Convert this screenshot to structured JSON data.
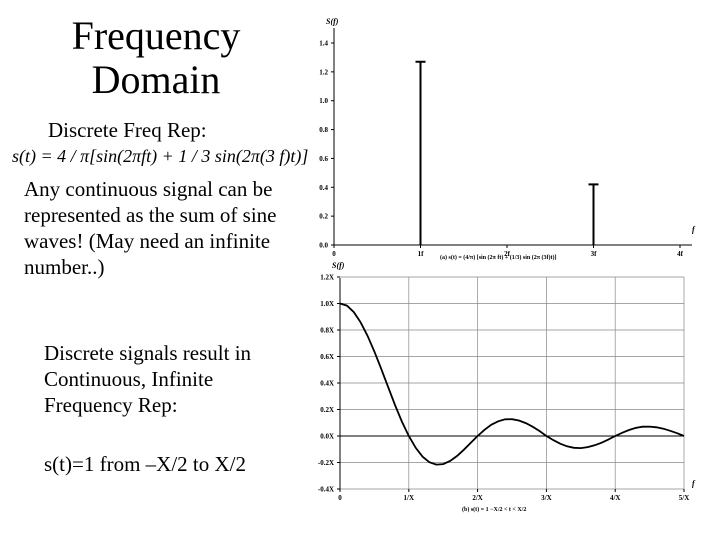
{
  "left_panel": {
    "title": "Frequency Domain",
    "subtitle": "Discrete Freq Rep:",
    "formula": "s(t) = 4 / π[sin(2πft) + 1 / 3 sin(2π(3 f)t)]",
    "paragraph1": "Any continuous signal can be represented as the sum of sine waves! (May need an infinite number..)",
    "paragraph2": "Discrete signals result in Continuous, Infinite Frequency Rep:",
    "paragraph3": "s(t)=1 from –X/2 to X/2"
  },
  "chart_data": [
    {
      "type": "bar",
      "y_axis_label": "S(f)",
      "x_axis_label": "f",
      "categories": [
        "0",
        "1f",
        "2f",
        "3f",
        "4f"
      ],
      "values": [
        0,
        1.27,
        0,
        0.42,
        0
      ],
      "ylim": [
        0,
        1.4
      ],
      "y_ticks": [
        "0.0",
        "0.2",
        "0.4",
        "0.6",
        "0.8",
        "1.0",
        "1.2",
        "1.4"
      ],
      "caption": "(a) s(t) = (4/π) [sin (2π ft) + (1/3) sin (2π (3f)t)]",
      "grid": false
    },
    {
      "type": "line",
      "y_axis_label": "S(f)",
      "x_axis_label": "f",
      "x_ticks": [
        "0",
        "1/X",
        "2/X",
        "3/X",
        "4/X",
        "5/X"
      ],
      "y_ticks": [
        "-0.4X",
        "-0.2X",
        "0.0X",
        "0.2X",
        "0.4X",
        "0.6X",
        "0.8X",
        "1.0X",
        "1.2X"
      ],
      "xlim": [
        0,
        5
      ],
      "ylim": [
        -0.4,
        1.2
      ],
      "series": [
        {
          "x": [
            0,
            0.1,
            0.2,
            0.3,
            0.4,
            0.5,
            0.6,
            0.7,
            0.8,
            0.9,
            1.0,
            1.1,
            1.2,
            1.3,
            1.4,
            1.5,
            1.6,
            1.7,
            1.8,
            1.9,
            2.0,
            2.1,
            2.2,
            2.3,
            2.4,
            2.5,
            2.6,
            2.7,
            2.8,
            2.9,
            3.0,
            3.1,
            3.2,
            3.3,
            3.4,
            3.5,
            3.6,
            3.7,
            3.8,
            3.9,
            4.0,
            4.1,
            4.2,
            4.3,
            4.4,
            4.5,
            4.6,
            4.7,
            4.8,
            4.9,
            5.0
          ],
          "y": [
            1.0,
            0.984,
            0.935,
            0.858,
            0.757,
            0.637,
            0.505,
            0.368,
            0.234,
            0.109,
            0.0,
            -0.089,
            -0.156,
            -0.198,
            -0.216,
            -0.212,
            -0.189,
            -0.151,
            -0.104,
            -0.052,
            0.0,
            0.047,
            0.085,
            0.111,
            0.126,
            0.127,
            0.117,
            0.097,
            0.07,
            0.038,
            0.0,
            -0.031,
            -0.058,
            -0.078,
            -0.089,
            -0.091,
            -0.084,
            -0.07,
            -0.051,
            -0.027,
            0.0,
            0.024,
            0.045,
            0.061,
            0.07,
            0.071,
            0.066,
            0.055,
            0.039,
            0.021,
            0.0
          ]
        }
      ],
      "caption": "(b) s(t) = 1  −X/2 < t < X/2",
      "grid": true
    }
  ]
}
